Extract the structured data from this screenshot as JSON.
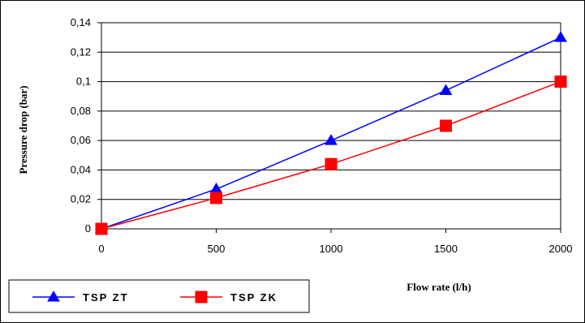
{
  "chart_data": {
    "type": "line",
    "xlabel": "Flow rate (l/h)",
    "ylabel": "Pressure drop (bar)",
    "x": [
      0,
      500,
      1000,
      1500,
      2000
    ],
    "x_tick_labels": [
      "0",
      "500",
      "1000",
      "1500",
      "2000"
    ],
    "y_tick_labels": [
      "0",
      "0,02",
      "0,04",
      "0,06",
      "0,08",
      "0,1",
      "0,12",
      "0,14"
    ],
    "xlim": [
      0,
      2000
    ],
    "ylim": [
      0,
      0.14
    ],
    "grid": "horizontal",
    "legend_position": "bottom-left",
    "series": [
      {
        "name": "TSP ZT",
        "color": "#0000ff",
        "marker": "triangle",
        "values": [
          0,
          0.027,
          0.06,
          0.094,
          0.13
        ]
      },
      {
        "name": "TSP ZK",
        "color": "#ff0000",
        "marker": "square",
        "values": [
          0,
          0.021,
          0.044,
          0.07,
          0.1
        ]
      }
    ]
  }
}
